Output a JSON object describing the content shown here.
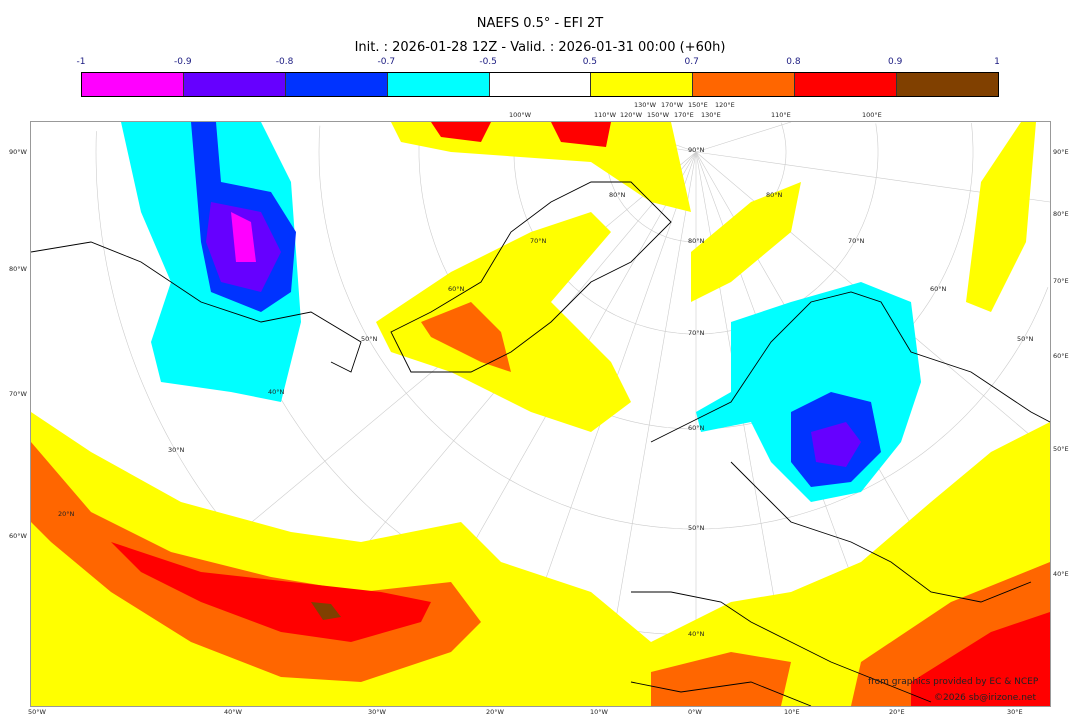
{
  "header": {
    "title": "NAEFS 0.5° - EFI 2T",
    "subtitle": "Init. : 2026-01-28 12Z - Valid. : 2026-01-31 00:00 (+60h)"
  },
  "colorbar": {
    "ticks": [
      "-1",
      "-0.9",
      "-0.8",
      "-0.7",
      "-0.5",
      "0.5",
      "0.7",
      "0.8",
      "0.9",
      "1"
    ],
    "colors": [
      "#ff00ff",
      "#6600ff",
      "#0033ff",
      "#00ffff",
      "#ffffff",
      "#ffff00",
      "#ff6600",
      "#ff0000",
      "#804000"
    ]
  },
  "map": {
    "left_labels": [
      "90°W",
      "80°W",
      "70°W",
      "60°W"
    ],
    "right_labels": [
      "90°E",
      "80°E",
      "70°E",
      "60°E",
      "50°E",
      "40°E"
    ],
    "top_labels": [
      "100°W",
      "110°W",
      "120°W",
      "130°W",
      "150°W",
      "170°W",
      "170°E",
      "150°E",
      "130°E",
      "120°E",
      "110°E",
      "100°E"
    ],
    "bottom_labels": [
      "50°W",
      "40°W",
      "30°W",
      "20°W",
      "10°W",
      "0°W",
      "10°E",
      "20°E",
      "30°E"
    ],
    "center_lat_labels": [
      "90°N",
      "80°N",
      "70°N",
      "60°N",
      "50°N",
      "40°N"
    ],
    "left_lat_labels": [
      "70°N",
      "60°N",
      "50°N",
      "40°N",
      "30°N",
      "20°N"
    ],
    "right_lat_labels": [
      "80°N",
      "80°N",
      "70°N",
      "60°N",
      "50°N"
    ]
  },
  "credits": {
    "source": "from graphics provided by EC & NCEP",
    "copyright": "©2026 sb@irizone.net"
  }
}
